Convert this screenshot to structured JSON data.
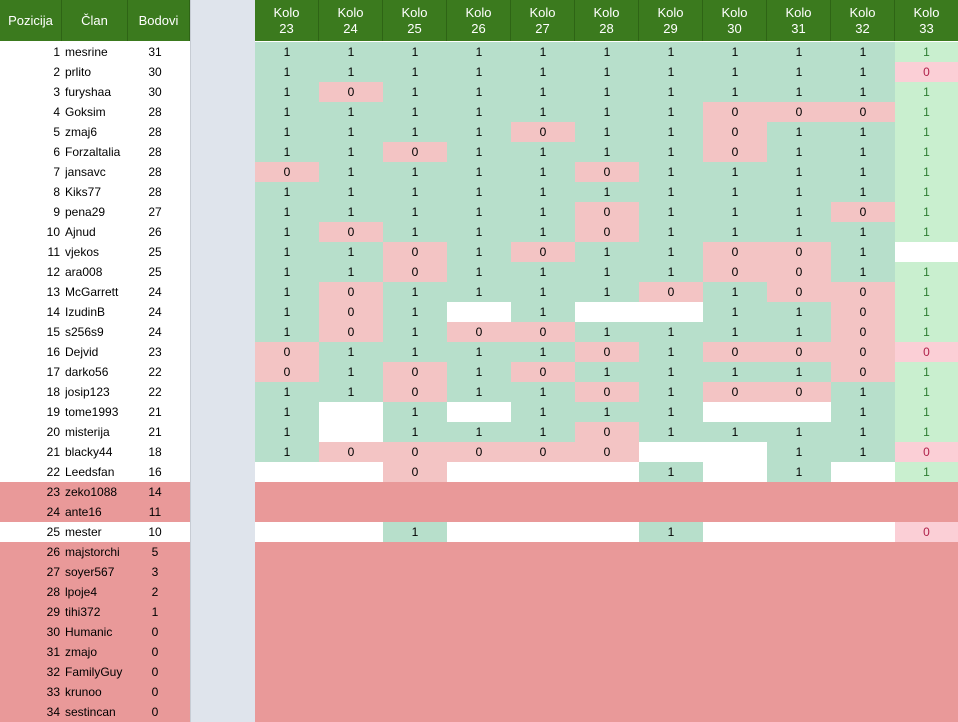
{
  "header": {
    "pozicija": "Pozicija",
    "clan": "Član",
    "bodovi": "Bodovi",
    "kolo_word": "Kolo",
    "rounds": [
      "23",
      "24",
      "25",
      "26",
      "27",
      "28",
      "29",
      "30",
      "31",
      "32",
      "33"
    ]
  },
  "colors": {
    "header_bg": "#3b7a1e",
    "one_bg": "#b7dfcb",
    "zero_bg": "#f3c4c4",
    "eliminated_bg": "#e99999",
    "divider_bg": "#dfe4ec"
  },
  "rows": [
    {
      "pos": "1",
      "name": "mesrine",
      "pts": "31",
      "cells": [
        "1",
        "1",
        "1",
        "1",
        "1",
        "1",
        "1",
        "1",
        "1",
        "1",
        "1"
      ]
    },
    {
      "pos": "2",
      "name": "prlito",
      "pts": "30",
      "cells": [
        "1",
        "1",
        "1",
        "1",
        "1",
        "1",
        "1",
        "1",
        "1",
        "1",
        "0"
      ]
    },
    {
      "pos": "3",
      "name": "furyshaa",
      "pts": "30",
      "cells": [
        "1",
        "0",
        "1",
        "1",
        "1",
        "1",
        "1",
        "1",
        "1",
        "1",
        "1"
      ]
    },
    {
      "pos": "4",
      "name": "Goksim",
      "pts": "28",
      "cells": [
        "1",
        "1",
        "1",
        "1",
        "1",
        "1",
        "1",
        "0",
        "0",
        "0",
        "1"
      ]
    },
    {
      "pos": "5",
      "name": "zmaj6",
      "pts": "28",
      "cells": [
        "1",
        "1",
        "1",
        "1",
        "0",
        "1",
        "1",
        "0",
        "1",
        "1",
        "1"
      ]
    },
    {
      "pos": "6",
      "name": "Forzaltalia",
      "pts": "28",
      "cells": [
        "1",
        "1",
        "0",
        "1",
        "1",
        "1",
        "1",
        "0",
        "1",
        "1",
        "1"
      ]
    },
    {
      "pos": "7",
      "name": "jansavc",
      "pts": "28",
      "cells": [
        "0",
        "1",
        "1",
        "1",
        "1",
        "0",
        "1",
        "1",
        "1",
        "1",
        "1"
      ]
    },
    {
      "pos": "8",
      "name": "Kiks77",
      "pts": "28",
      "cells": [
        "1",
        "1",
        "1",
        "1",
        "1",
        "1",
        "1",
        "1",
        "1",
        "1",
        "1"
      ]
    },
    {
      "pos": "9",
      "name": "pena29",
      "pts": "27",
      "cells": [
        "1",
        "1",
        "1",
        "1",
        "1",
        "0",
        "1",
        "1",
        "1",
        "0",
        "1"
      ]
    },
    {
      "pos": "10",
      "name": "Ajnud",
      "pts": "26",
      "cells": [
        "1",
        "0",
        "1",
        "1",
        "1",
        "0",
        "1",
        "1",
        "1",
        "1",
        "1"
      ]
    },
    {
      "pos": "11",
      "name": "vjekos",
      "pts": "25",
      "cells": [
        "1",
        "1",
        "0",
        "1",
        "0",
        "1",
        "1",
        "0",
        "0",
        "1",
        ""
      ]
    },
    {
      "pos": "12",
      "name": "ara008",
      "pts": "25",
      "cells": [
        "1",
        "1",
        "0",
        "1",
        "1",
        "1",
        "1",
        "0",
        "0",
        "1",
        "1"
      ]
    },
    {
      "pos": "13",
      "name": "McGarrett",
      "pts": "24",
      "cells": [
        "1",
        "0",
        "1",
        "1",
        "1",
        "1",
        "0",
        "1",
        "0",
        "0",
        "1"
      ]
    },
    {
      "pos": "14",
      "name": "IzudinB",
      "pts": "24",
      "cells": [
        "1",
        "0",
        "1",
        "",
        "1",
        "",
        "",
        "1",
        "1",
        "0",
        "1"
      ]
    },
    {
      "pos": "15",
      "name": "s256s9",
      "pts": "24",
      "cells": [
        "1",
        "0",
        "1",
        "0",
        "0",
        "1",
        "1",
        "1",
        "1",
        "0",
        "1"
      ]
    },
    {
      "pos": "16",
      "name": "Dejvid",
      "pts": "23",
      "cells": [
        "0",
        "1",
        "1",
        "1",
        "1",
        "0",
        "1",
        "0",
        "0",
        "0",
        "0"
      ]
    },
    {
      "pos": "17",
      "name": "darko56",
      "pts": "22",
      "cells": [
        "0",
        "1",
        "0",
        "1",
        "0",
        "1",
        "1",
        "1",
        "1",
        "0",
        "1"
      ]
    },
    {
      "pos": "18",
      "name": "josip123",
      "pts": "22",
      "cells": [
        "1",
        "1",
        "0",
        "1",
        "1",
        "0",
        "1",
        "0",
        "0",
        "1",
        "1"
      ]
    },
    {
      "pos": "19",
      "name": "tome1993",
      "pts": "21",
      "cells": [
        "1",
        "",
        "1",
        "",
        "1",
        "1",
        "1",
        "",
        "",
        "1",
        "1"
      ]
    },
    {
      "pos": "20",
      "name": "misterija",
      "pts": "21",
      "cells": [
        "1",
        "",
        "1",
        "1",
        "1",
        "0",
        "1",
        "1",
        "1",
        "1",
        "1"
      ]
    },
    {
      "pos": "21",
      "name": "blacky44",
      "pts": "18",
      "cells": [
        "1",
        "0",
        "0",
        "0",
        "0",
        "0",
        "",
        "",
        "1",
        "1",
        "0"
      ]
    },
    {
      "pos": "22",
      "name": "Leedsfan",
      "pts": "16",
      "cells": [
        "",
        "",
        "0",
        "",
        "",
        "",
        "1",
        "",
        "1",
        "",
        "1"
      ]
    },
    {
      "pos": "23",
      "name": "zeko1088",
      "pts": "14",
      "cells": null
    },
    {
      "pos": "24",
      "name": "ante16",
      "pts": "11",
      "cells": null
    },
    {
      "pos": "25",
      "name": "mester",
      "pts": "10",
      "cells": [
        "",
        "",
        "1",
        "",
        "",
        "",
        "1",
        "",
        "",
        "",
        "0"
      ]
    },
    {
      "pos": "26",
      "name": "majstorchi",
      "pts": "5",
      "cells": null
    },
    {
      "pos": "27",
      "name": "soyer567",
      "pts": "3",
      "cells": null
    },
    {
      "pos": "28",
      "name": "lpoje4",
      "pts": "2",
      "cells": null
    },
    {
      "pos": "29",
      "name": "tihi372",
      "pts": "1",
      "cells": null
    },
    {
      "pos": "30",
      "name": "Humanic",
      "pts": "0",
      "cells": null
    },
    {
      "pos": "31",
      "name": "zmajo",
      "pts": "0",
      "cells": null
    },
    {
      "pos": "32",
      "name": "FamilyGuy",
      "pts": "0",
      "cells": null
    },
    {
      "pos": "33",
      "name": "krunoo",
      "pts": "0",
      "cells": null
    },
    {
      "pos": "34",
      "name": "sestincan",
      "pts": "0",
      "cells": null
    }
  ]
}
